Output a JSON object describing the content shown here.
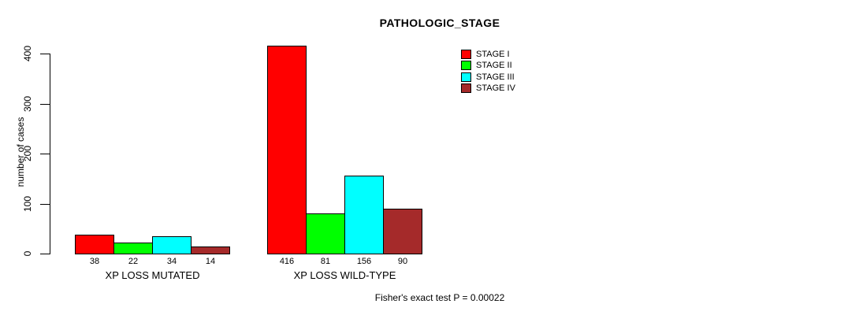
{
  "title": "PATHOLOGIC_STAGE",
  "footer": "Fisher's exact test P = 0.00022",
  "y_axis": {
    "label": "number of cases",
    "ticks": [
      0,
      100,
      200,
      300,
      400
    ]
  },
  "legend": {
    "items": [
      {
        "label": "STAGE I",
        "color": "#FF0000"
      },
      {
        "label": "STAGE II",
        "color": "#00FF00"
      },
      {
        "label": "STAGE III",
        "color": "#00FFFF"
      },
      {
        "label": "STAGE IV",
        "color": "#A52A2A"
      }
    ]
  },
  "colors": {
    "background": "#FFFFFF",
    "axis": "#000000",
    "bar_border": "#000000"
  },
  "chart_data": {
    "type": "bar",
    "title": "PATHOLOGIC_STAGE",
    "xlabel": "",
    "ylabel": "number of cases",
    "ylim": [
      0,
      400
    ],
    "yticks": [
      0,
      100,
      200,
      300,
      400
    ],
    "categories": [
      "XP LOSS MUTATED",
      "XP LOSS WILD-TYPE"
    ],
    "series": [
      {
        "name": "STAGE I",
        "color": "#FF0000",
        "values": [
          38,
          416
        ]
      },
      {
        "name": "STAGE II",
        "color": "#00FF00",
        "values": [
          22,
          81
        ]
      },
      {
        "name": "STAGE III",
        "color": "#00FFFF",
        "values": [
          34,
          156
        ]
      },
      {
        "name": "STAGE IV",
        "color": "#A52A2A",
        "values": [
          14,
          90
        ]
      }
    ],
    "bar_value_labels_shown": true,
    "grid": false,
    "legend_position": "top-right",
    "annotation": "Fisher's exact test P = 0.00022"
  }
}
